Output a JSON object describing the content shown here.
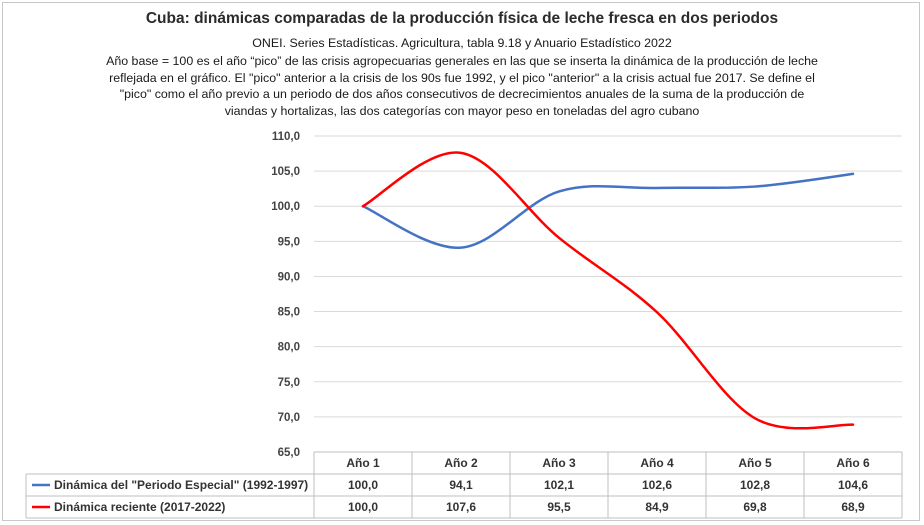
{
  "chart_data": {
    "type": "line",
    "title": "Cuba: dinámicas comparadas de la producción física de leche fresca en dos periodos",
    "subtitle_lines": [
      "ONEI. Series Estadísticas. Agricultura, tabla 9.18 y Anuario Estadístico 2022",
      "Año base = 100 es el año “pico” de las crisis agropecuarias generales  en las que se inserta la dinámica de la producción de leche",
      "reflejada en el gráfico. El \"pico\" anterior a la crisis de los 90s fue 1992, y el pico \"anterior\" a la crisis actual fue 2017. Se define el",
      "\"pico\" como el año previo a un periodo de dos años consecutivos de decrecimientos anuales de la suma de la producción de",
      "viandas y hortalizas, las dos categorías con mayor peso en toneladas del agro cubano"
    ],
    "categories": [
      "Año 1",
      "Año 2",
      "Año 3",
      "Año 4",
      "Año 5",
      "Año 6"
    ],
    "ylim": [
      65,
      110
    ],
    "yticks": [
      "65,0",
      "70,0",
      "75,0",
      "80,0",
      "85,0",
      "90,0",
      "95,0",
      "100,0",
      "105,0",
      "110,0"
    ],
    "grid": true,
    "legend": "data-table-bottom",
    "series": [
      {
        "name": "Dinámica del \"Periodo Especial\" (1992-1997)",
        "values": [
          100.0,
          94.1,
          102.1,
          102.6,
          102.8,
          104.6
        ],
        "labels": [
          "100,0",
          "94,1",
          "102,1",
          "102,6",
          "102,8",
          "104,6"
        ],
        "color": "#4472c4"
      },
      {
        "name": "Dinámica reciente (2017-2022)",
        "values": [
          100.0,
          107.6,
          95.5,
          84.9,
          69.8,
          68.9
        ],
        "labels": [
          "100,0",
          "107,6",
          "95,5",
          "84,9",
          "69,8",
          "68,9"
        ],
        "color": "#ff0000"
      }
    ]
  }
}
